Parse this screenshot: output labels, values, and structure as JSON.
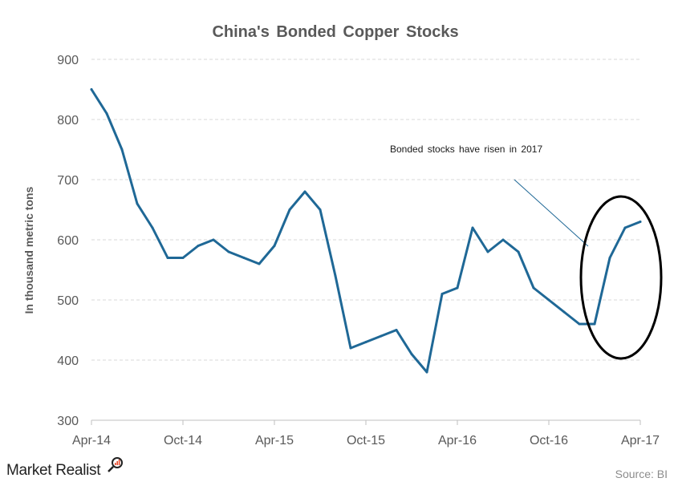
{
  "chart_data": {
    "type": "line",
    "title": "China's Bonded Copper Stocks",
    "ylabel": "In thousand metric tons",
    "xlabel": "",
    "ylim": [
      300,
      900
    ],
    "yticks": [
      300,
      400,
      500,
      600,
      700,
      800,
      900
    ],
    "x_tick_labels": [
      "Apr-14",
      "Oct-14",
      "Apr-15",
      "Oct-15",
      "Apr-16",
      "Oct-16",
      "Apr-17"
    ],
    "x_start": "Apr-14",
    "x_end": "Apr-17",
    "grid": "horizontal dashed",
    "series": [
      {
        "color": "#1f6896",
        "x": [
          "Apr-14",
          "May-14",
          "Jun-14",
          "Jul-14",
          "Aug-14",
          "Sep-14",
          "Oct-14",
          "Nov-14",
          "Dec-14",
          "Jan-15",
          "Feb-15",
          "Mar-15",
          "Apr-15",
          "May-15",
          "Jun-15",
          "Jul-15",
          "Aug-15",
          "Sep-15",
          "Oct-15",
          "Nov-15",
          "Dec-15",
          "Jan-16",
          "Feb-16",
          "Mar-16",
          "Apr-16",
          "May-16",
          "Jun-16",
          "Jul-16",
          "Aug-16",
          "Sep-16",
          "Oct-16",
          "Nov-16",
          "Dec-16",
          "Jan-17",
          "Feb-17",
          "Mar-17",
          "Apr-17"
        ],
        "values": [
          850,
          810,
          750,
          660,
          620,
          570,
          570,
          590,
          600,
          580,
          570,
          560,
          590,
          650,
          680,
          650,
          540,
          420,
          430,
          440,
          450,
          410,
          380,
          510,
          520,
          620,
          580,
          600,
          580,
          520,
          500,
          480,
          460,
          460,
          570,
          620,
          630
        ]
      }
    ],
    "annotation": "Bonded stocks have risen in 2017"
  },
  "source": "Source:  BI",
  "brand": {
    "name": "Market Realist",
    "logo_color": "#e94b2b"
  }
}
